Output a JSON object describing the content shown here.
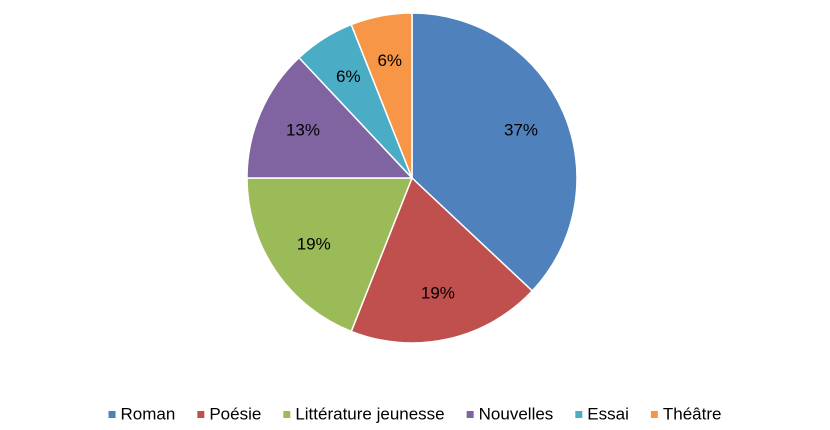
{
  "chart_data": {
    "type": "pie",
    "categories": [
      "Roman",
      "Poésie",
      "Littérature jeunesse",
      "Nouvelles",
      "Essai",
      "Théâtre"
    ],
    "values": [
      37,
      19,
      19,
      13,
      6,
      6
    ],
    "value_labels": [
      "37%",
      "19%",
      "19%",
      "13%",
      "6%",
      "6%"
    ],
    "colors": [
      "#4f81bd",
      "#c0504d",
      "#9bbb59",
      "#8064a2",
      "#4bacc6",
      "#f79646"
    ],
    "legend": "bottom"
  }
}
